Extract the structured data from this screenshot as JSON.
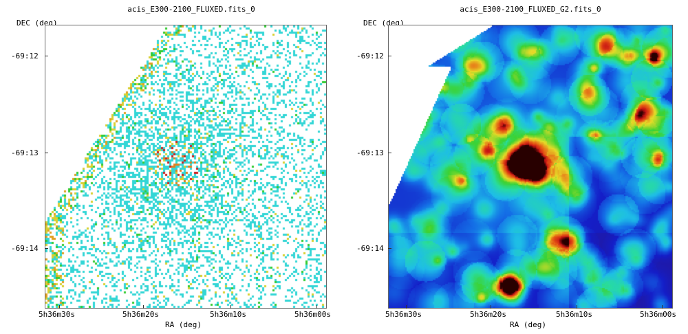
{
  "panels": [
    {
      "title": "acis_E300-2100_FLUXED.fits_0",
      "ylabel": "DEC (deg)",
      "xlabel": "RA (deg)",
      "xticks": [
        "5h36m30s",
        "5h36m20s",
        "5h36m10s",
        "5h36m00s"
      ],
      "yticks": [
        "-69:12",
        "-69:13",
        "-69:14"
      ],
      "style": "raw"
    },
    {
      "title": "acis_E300-2100_FLUXED_G2.fits_0",
      "ylabel": "DEC (deg)",
      "xlabel": "RA (deg)",
      "xticks": [
        "5h36m30s",
        "5h36m20s",
        "5h36m10s",
        "5h36m00s"
      ],
      "yticks": [
        "-69:12",
        "-69:13",
        "-69:14"
      ],
      "style": "smoothed"
    }
  ],
  "colors": {
    "background": "#ffffff",
    "frame": "#666666",
    "cyan": "#33d6d6",
    "green": "#33cc33",
    "yellow": "#e0d040",
    "red": "#cc2222",
    "deep_blue": "#1020c0"
  }
}
